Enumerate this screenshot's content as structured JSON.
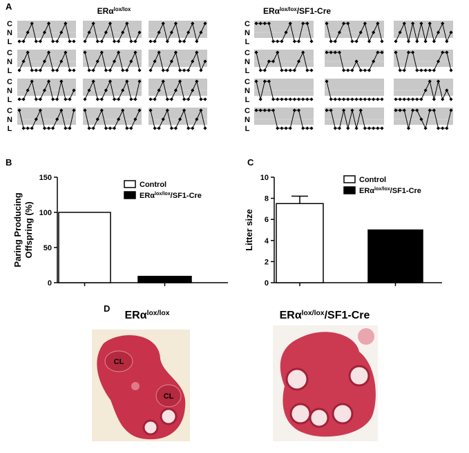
{
  "panel_letters": [
    "A",
    "B",
    "C",
    "D"
  ],
  "chart_data": [
    {
      "type": "estrous",
      "ylim": [
        0,
        2
      ],
      "yticks": [
        {
          "value": 0,
          "label": "L"
        },
        {
          "value": 1,
          "label": "N"
        },
        {
          "value": 2,
          "label": "C"
        }
      ],
      "groups": [
        {
          "title": [
            "ERα",
            "lox/lox"
          ],
          "plots": [
            [
              0,
              0,
              1,
              2,
              0,
              0,
              1,
              2,
              0,
              0,
              1,
              2,
              0,
              0
            ],
            [
              0,
              1,
              2,
              0,
              0,
              1,
              2,
              0,
              0,
              1,
              2,
              0,
              0,
              1
            ],
            [
              0,
              0,
              1,
              2,
              0,
              1,
              2,
              0,
              0,
              1,
              2,
              0,
              1,
              2
            ],
            [
              0,
              1,
              2,
              0,
              0,
              0,
              1,
              2,
              0,
              0,
              1,
              2,
              0,
              0
            ],
            [
              2,
              0,
              0,
              1,
              2,
              0,
              0,
              1,
              2,
              0,
              0,
              1,
              2,
              0
            ],
            [
              0,
              1,
              2,
              0,
              0,
              1,
              2,
              0,
              0,
              0,
              1,
              2,
              0,
              1
            ],
            [
              0,
              0,
              1,
              2,
              0,
              0,
              1,
              2,
              0,
              0,
              2,
              0,
              0,
              1
            ],
            [
              0,
              1,
              2,
              0,
              0,
              1,
              2,
              0,
              0,
              1,
              2,
              0,
              0,
              2
            ],
            [
              0,
              0,
              1,
              2,
              0,
              0,
              1,
              2,
              0,
              0,
              1,
              2,
              0,
              0
            ],
            [
              2,
              0,
              0,
              0,
              1,
              2,
              0,
              0,
              0,
              1,
              2,
              0,
              0,
              2
            ],
            [
              2,
              0,
              0,
              1,
              2,
              0,
              0,
              0,
              1,
              2,
              0,
              0,
              1,
              2
            ],
            [
              2,
              0,
              0,
              1,
              2,
              0,
              0,
              1,
              2,
              0,
              0,
              1,
              2,
              0
            ]
          ]
        },
        {
          "title": [
            "ERα",
            "lox/lox",
            "/SF1-Cre"
          ],
          "plots": [
            [
              2,
              2,
              2,
              2,
              0,
              0,
              0,
              1,
              2,
              0,
              0,
              2,
              2,
              0
            ],
            [
              2,
              0,
              0,
              1,
              2,
              2,
              0,
              0,
              1,
              2,
              0,
              1,
              2,
              0
            ],
            [
              0,
              1,
              2,
              0,
              2,
              0,
              2,
              0,
              2,
              0,
              1,
              2,
              0,
              1
            ],
            [
              2,
              0,
              0,
              1,
              1,
              2,
              0,
              0,
              0,
              0,
              1,
              2,
              0,
              0
            ],
            [
              2,
              2,
              2,
              2,
              0,
              0,
              0,
              1,
              0,
              0,
              0,
              1,
              2,
              2
            ],
            [
              2,
              0,
              0,
              2,
              2,
              0,
              0,
              0,
              0,
              0,
              1,
              2,
              2,
              0
            ],
            [
              2,
              0,
              2,
              2,
              0,
              0,
              0,
              0,
              0,
              0,
              0,
              0,
              0,
              0
            ],
            [
              2,
              0,
              0,
              0,
              0,
              0,
              0,
              0,
              0,
              0,
              0,
              0,
              0,
              0
            ],
            [
              0,
              0,
              0,
              0,
              0,
              0,
              0,
              1,
              2,
              0,
              2,
              0,
              1,
              0
            ],
            [
              2,
              2,
              2,
              2,
              2,
              0,
              0,
              0,
              0,
              2,
              2,
              0,
              0,
              0
            ],
            [
              2,
              2,
              0,
              0,
              2,
              0,
              2,
              0,
              2,
              0,
              0,
              0,
              0,
              0
            ],
            [
              2,
              2,
              2,
              0,
              2,
              2,
              1,
              0,
              2,
              2,
              0,
              0,
              0,
              2
            ]
          ]
        }
      ]
    },
    {
      "type": "bar",
      "ylabel": [
        "Paring Producing",
        "Offspring (%)"
      ],
      "ylim": [
        0,
        150
      ],
      "yticks": [
        0,
        50,
        100,
        150
      ],
      "series": [
        {
          "name": [
            "Control"
          ],
          "color": "#ffffff",
          "values": [
            100
          ]
        },
        {
          "name": [
            "ERα",
            "lox/lox",
            "/SF1-Cre"
          ],
          "color": "#000000",
          "values": [
            9
          ]
        }
      ]
    },
    {
      "type": "bar",
      "ylabel": [
        "Litter size"
      ],
      "ylim": [
        0,
        10
      ],
      "yticks": [
        0,
        2,
        4,
        6,
        8,
        10
      ],
      "series": [
        {
          "name": [
            "Control"
          ],
          "color": "#ffffff",
          "values": [
            7.5
          ],
          "errors": [
            0.7
          ]
        },
        {
          "name": [
            "ERα",
            "lox/lox",
            "/SF1-Cre"
          ],
          "color": "#000000",
          "values": [
            5
          ]
        }
      ]
    }
  ],
  "panel_d": {
    "titles": [
      [
        "ERα",
        "lox/lox"
      ],
      [
        "ERα",
        "lox/lox",
        "/SF1-Cre"
      ]
    ],
    "labels": [
      "CL",
      "CL"
    ]
  }
}
